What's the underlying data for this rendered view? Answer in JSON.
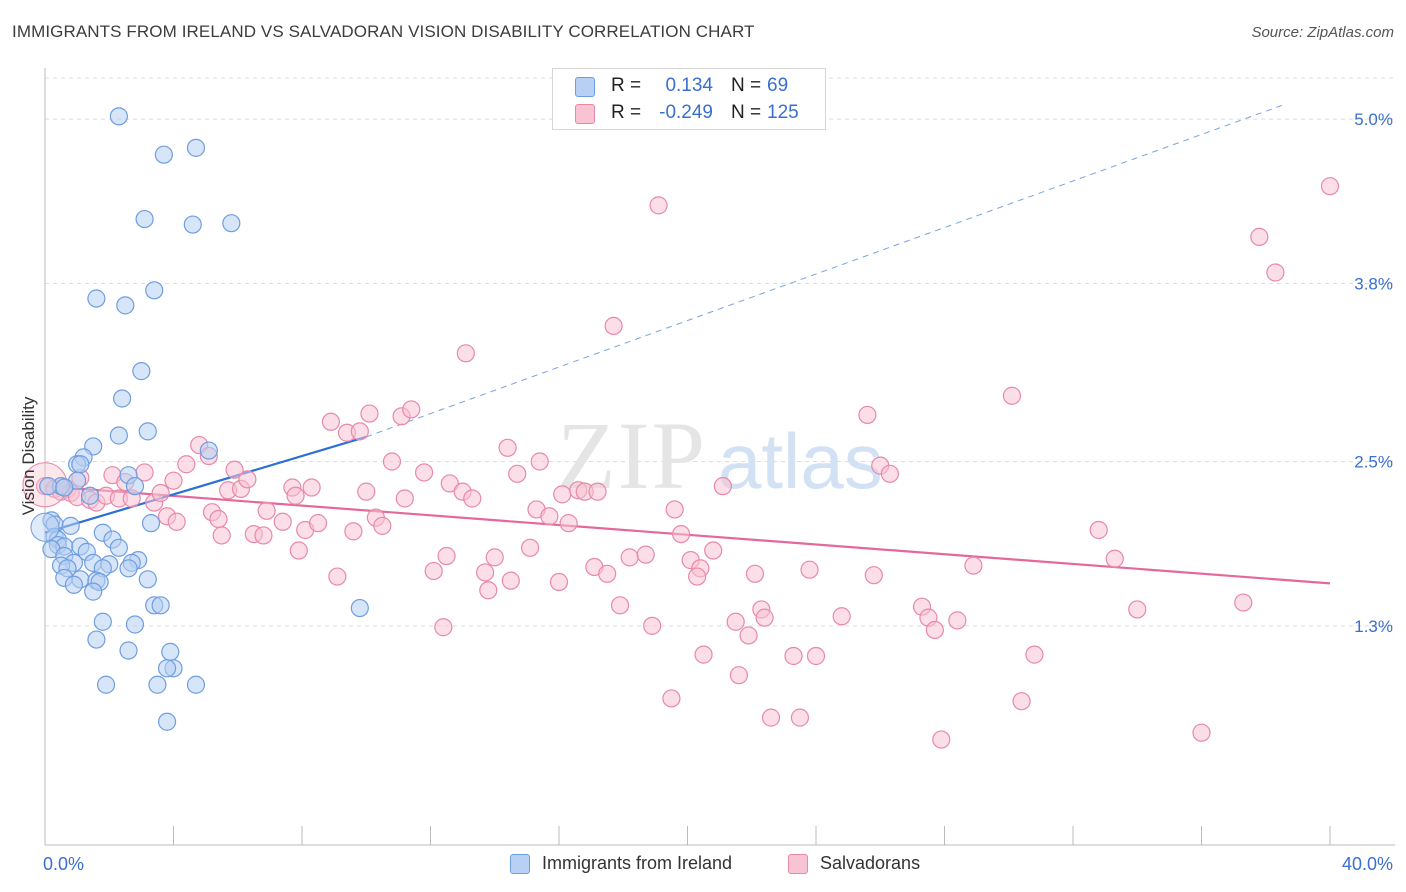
{
  "title": "IMMIGRANTS FROM IRELAND VS SALVADORAN VISION DISABILITY CORRELATION CHART",
  "source": "Source: ZipAtlas.com",
  "watermark": {
    "zip": "ZIP",
    "atlas": "atlas"
  },
  "legend": {
    "r_label": "R =",
    "n_label": "N =",
    "rows": [
      {
        "r": "0.134",
        "n": "69",
        "fill": "#b7d0f3",
        "stroke": "#6f9ee0"
      },
      {
        "r": "-0.249",
        "n": "125",
        "fill": "#f8c3d3",
        "stroke": "#e889a8"
      }
    ]
  },
  "bottom_legend": [
    {
      "label": "Immigrants from Ireland"
    },
    {
      "label": "Salvadorans"
    }
  ],
  "colors": {
    "ireland_fill": "#b7d0f3",
    "ireland_stroke": "#6f9ee0",
    "ireland_line": "#2e6fd6",
    "salv_fill": "#f8c3d3",
    "salv_stroke": "#e889a8",
    "salv_line": "#e4699a",
    "grid": "#dcdcdc",
    "axis_label": "#3a6fd0"
  },
  "chart_data": {
    "type": "scatter",
    "title": "IMMIGRANTS FROM IRELAND VS SALVADORAN VISION DISABILITY CORRELATION CHART",
    "xlabel": "",
    "ylabel": "Vision Disability",
    "xlim": [
      0,
      40
    ],
    "ylim": [
      -0.3,
      5.3
    ],
    "x_tick_labels": [
      "0.0%",
      "40.0%"
    ],
    "y_ticks": [
      1.3,
      2.5,
      3.8,
      5.0
    ],
    "y_tick_labels": [
      "1.3%",
      "2.5%",
      "3.8%",
      "5.0%"
    ],
    "grid": true,
    "legend_position": "top-center",
    "series": [
      {
        "name": "Immigrants from Ireland",
        "r": 0.134,
        "n": 69,
        "trend": {
          "x": [
            0,
            10
          ],
          "y": [
            1.98,
            2.68
          ],
          "dashed_to": [
            38.5,
            5.1
          ]
        },
        "points": [
          [
            2.3,
            5.02
          ],
          [
            3.7,
            4.74
          ],
          [
            4.7,
            4.79
          ],
          [
            3.1,
            4.27
          ],
          [
            4.6,
            4.23
          ],
          [
            5.8,
            4.24
          ],
          [
            1.6,
            3.69
          ],
          [
            2.5,
            3.64
          ],
          [
            3.4,
            3.75
          ],
          [
            3.0,
            3.16
          ],
          [
            2.4,
            2.96
          ],
          [
            3.2,
            2.72
          ],
          [
            2.3,
            2.69
          ],
          [
            1.5,
            2.61
          ],
          [
            5.1,
            2.58
          ],
          [
            1.2,
            2.53
          ],
          [
            1.0,
            2.48
          ],
          [
            1.1,
            2.48
          ],
          [
            2.6,
            2.4
          ],
          [
            1.0,
            2.36
          ],
          [
            2.8,
            2.32
          ],
          [
            0.5,
            2.32
          ],
          [
            0.1,
            2.32
          ],
          [
            0.6,
            2.31
          ],
          [
            1.4,
            2.25
          ],
          [
            0.2,
            2.07
          ],
          [
            0.3,
            2.04
          ],
          [
            0.8,
            2.03
          ],
          [
            3.3,
            2.05
          ],
          [
            1.8,
            1.98
          ],
          [
            0.3,
            1.95
          ],
          [
            0.4,
            1.93
          ],
          [
            2.1,
            1.93
          ],
          [
            0.4,
            1.89
          ],
          [
            0.6,
            1.88
          ],
          [
            1.1,
            1.88
          ],
          [
            2.3,
            1.87
          ],
          [
            0.2,
            1.86
          ],
          [
            1.3,
            1.84
          ],
          [
            0.6,
            1.81
          ],
          [
            2.9,
            1.78
          ],
          [
            0.9,
            1.76
          ],
          [
            1.5,
            1.76
          ],
          [
            2.0,
            1.75
          ],
          [
            2.7,
            1.76
          ],
          [
            0.5,
            1.74
          ],
          [
            0.7,
            1.72
          ],
          [
            1.8,
            1.72
          ],
          [
            2.6,
            1.72
          ],
          [
            0.6,
            1.65
          ],
          [
            1.1,
            1.64
          ],
          [
            1.6,
            1.63
          ],
          [
            3.2,
            1.64
          ],
          [
            1.7,
            1.62
          ],
          [
            0.9,
            1.6
          ],
          [
            1.5,
            1.55
          ],
          [
            3.4,
            1.45
          ],
          [
            3.6,
            1.45
          ],
          [
            9.8,
            1.43
          ],
          [
            1.8,
            1.33
          ],
          [
            2.8,
            1.31
          ],
          [
            1.6,
            1.2
          ],
          [
            2.6,
            1.12
          ],
          [
            3.9,
            1.11
          ],
          [
            4.0,
            0.99
          ],
          [
            3.8,
            0.99
          ],
          [
            1.9,
            0.87
          ],
          [
            3.5,
            0.87
          ],
          [
            4.7,
            0.87
          ],
          [
            3.8,
            0.6
          ]
        ]
      },
      {
        "name": "Salvadorans",
        "r": -0.249,
        "n": 125,
        "trend": {
          "x": [
            0,
            40
          ],
          "y": [
            2.32,
            1.61
          ]
        },
        "points": [
          [
            0.0,
            2.32
          ],
          [
            0.3,
            2.3
          ],
          [
            0.5,
            2.28
          ],
          [
            0.7,
            2.3
          ],
          [
            0.8,
            2.27
          ],
          [
            1.0,
            2.24
          ],
          [
            1.1,
            2.38
          ],
          [
            1.4,
            2.22
          ],
          [
            1.6,
            2.2
          ],
          [
            1.9,
            2.25
          ],
          [
            2.1,
            2.4
          ],
          [
            2.3,
            2.23
          ],
          [
            2.5,
            2.35
          ],
          [
            2.7,
            2.23
          ],
          [
            3.1,
            2.42
          ],
          [
            3.4,
            2.2
          ],
          [
            3.6,
            2.27
          ],
          [
            3.8,
            2.1
          ],
          [
            4.1,
            2.06
          ],
          [
            4.0,
            2.36
          ],
          [
            4.4,
            2.48
          ],
          [
            4.8,
            2.62
          ],
          [
            5.1,
            2.54
          ],
          [
            5.2,
            2.13
          ],
          [
            5.4,
            2.08
          ],
          [
            5.5,
            1.96
          ],
          [
            5.7,
            2.29
          ],
          [
            5.9,
            2.44
          ],
          [
            6.1,
            2.3
          ],
          [
            6.3,
            2.37
          ],
          [
            6.5,
            1.97
          ],
          [
            6.8,
            1.96
          ],
          [
            6.9,
            2.14
          ],
          [
            7.4,
            2.06
          ],
          [
            7.7,
            2.31
          ],
          [
            7.8,
            2.25
          ],
          [
            7.9,
            1.85
          ],
          [
            8.1,
            2.0
          ],
          [
            8.3,
            2.31
          ],
          [
            8.5,
            2.05
          ],
          [
            8.9,
            2.79
          ],
          [
            9.1,
            1.66
          ],
          [
            9.4,
            2.71
          ],
          [
            9.6,
            1.99
          ],
          [
            9.8,
            2.72
          ],
          [
            10.0,
            2.28
          ],
          [
            10.1,
            2.85
          ],
          [
            10.3,
            2.09
          ],
          [
            10.5,
            2.03
          ],
          [
            10.8,
            2.5
          ],
          [
            11.1,
            2.83
          ],
          [
            11.2,
            2.23
          ],
          [
            11.4,
            2.88
          ],
          [
            11.8,
            2.42
          ],
          [
            12.1,
            1.7
          ],
          [
            12.4,
            1.29
          ],
          [
            12.5,
            1.81
          ],
          [
            12.6,
            2.34
          ],
          [
            13.0,
            2.28
          ],
          [
            13.1,
            3.29
          ],
          [
            13.3,
            2.23
          ],
          [
            13.7,
            1.69
          ],
          [
            13.8,
            1.56
          ],
          [
            14.0,
            1.8
          ],
          [
            14.4,
            2.6
          ],
          [
            14.5,
            1.63
          ],
          [
            14.7,
            2.41
          ],
          [
            15.1,
            1.87
          ],
          [
            15.3,
            2.15
          ],
          [
            15.4,
            2.5
          ],
          [
            15.7,
            2.1
          ],
          [
            16.0,
            1.62
          ],
          [
            16.1,
            2.26
          ],
          [
            16.3,
            2.05
          ],
          [
            16.6,
            2.29
          ],
          [
            16.8,
            2.28
          ],
          [
            17.1,
            1.73
          ],
          [
            17.5,
            1.68
          ],
          [
            17.7,
            3.49
          ],
          [
            17.2,
            2.28
          ],
          [
            17.9,
            1.45
          ],
          [
            18.2,
            1.8
          ],
          [
            18.7,
            1.82
          ],
          [
            18.9,
            1.3
          ],
          [
            19.1,
            4.37
          ],
          [
            19.6,
            2.15
          ],
          [
            19.8,
            1.97
          ],
          [
            19.5,
            0.77
          ],
          [
            20.1,
            1.78
          ],
          [
            20.4,
            1.72
          ],
          [
            20.3,
            1.66
          ],
          [
            20.8,
            1.85
          ],
          [
            20.5,
            1.09
          ],
          [
            21.1,
            2.32
          ],
          [
            21.5,
            1.33
          ],
          [
            21.9,
            1.23
          ],
          [
            21.6,
            0.94
          ],
          [
            22.1,
            1.68
          ],
          [
            22.3,
            1.42
          ],
          [
            22.4,
            1.36
          ],
          [
            22.6,
            0.63
          ],
          [
            23.3,
            1.08
          ],
          [
            23.5,
            0.63
          ],
          [
            23.8,
            1.71
          ],
          [
            24.0,
            1.08
          ],
          [
            24.8,
            1.37
          ],
          [
            25.8,
            1.67
          ],
          [
            25.6,
            2.84
          ],
          [
            26.0,
            2.47
          ],
          [
            26.3,
            2.41
          ],
          [
            27.3,
            1.44
          ],
          [
            27.5,
            1.36
          ],
          [
            27.7,
            1.27
          ],
          [
            27.9,
            0.47
          ],
          [
            28.4,
            1.34
          ],
          [
            28.9,
            1.74
          ],
          [
            30.8,
            1.09
          ],
          [
            30.1,
            2.98
          ],
          [
            30.4,
            0.75
          ],
          [
            32.8,
            2.0
          ],
          [
            33.3,
            1.79
          ],
          [
            34.0,
            1.42
          ],
          [
            37.8,
            4.14
          ],
          [
            38.3,
            3.88
          ],
          [
            40.0,
            4.51
          ],
          [
            37.3,
            1.47
          ],
          [
            36.0,
            0.52
          ]
        ]
      }
    ]
  }
}
